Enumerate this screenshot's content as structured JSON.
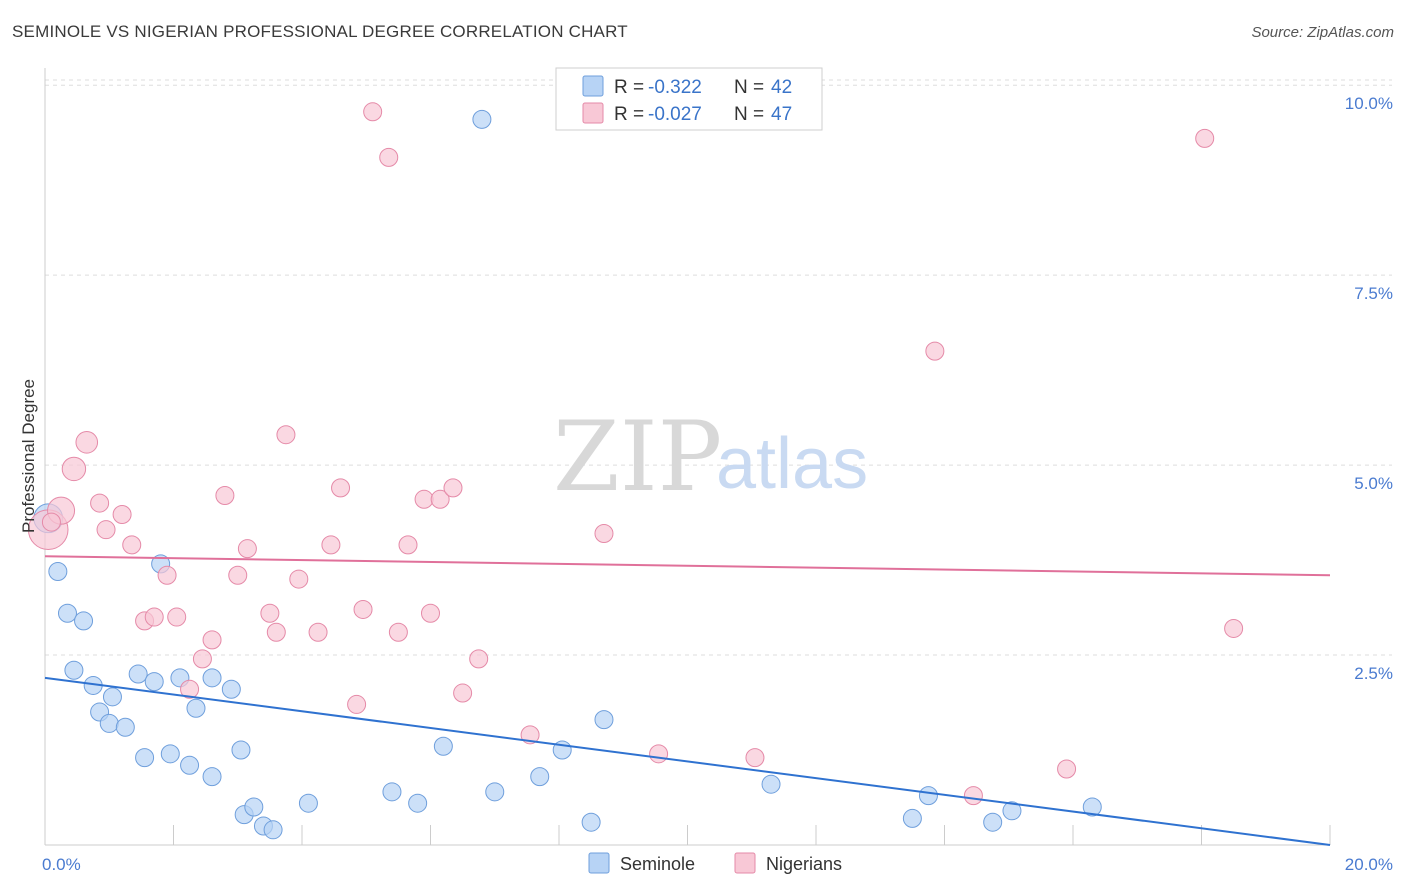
{
  "title": "SEMINOLE VS NIGERIAN PROFESSIONAL DEGREE CORRELATION CHART",
  "source": "Source: ZipAtlas.com",
  "colors": {
    "seminole_fill": "#b7d3f5",
    "seminole_stroke": "#6f9fdc",
    "seminole_line": "#2f72d0",
    "nigerian_fill": "#f8c8d6",
    "nigerian_stroke": "#e58aa8",
    "nigerian_line": "#e0709a",
    "axis_text": "#4a7bd0",
    "grid": "#dddddd"
  },
  "legend": {
    "rows": [
      {
        "r_label": "R =",
        "r_value": "-0.322",
        "n_label": "N =",
        "n_value": "42"
      },
      {
        "r_label": "R =",
        "r_value": "-0.027",
        "n_label": "N =",
        "n_value": "47"
      }
    ]
  },
  "watermark": {
    "zip": "ZIP",
    "atlas": "atlas"
  },
  "chart_data": {
    "type": "scatter",
    "title": "SEMINOLE VS NIGERIAN PROFESSIONAL DEGREE CORRELATION CHART",
    "xlabel": "",
    "ylabel": "Professional Degree",
    "xlim": [
      0,
      20
    ],
    "ylim": [
      0,
      10.2
    ],
    "x_tick_labels": [
      {
        "value": 0,
        "label": "0.0%"
      },
      {
        "value": 20,
        "label": "20.0%"
      }
    ],
    "x_minor_ticks": [
      2,
      4,
      6,
      8,
      10,
      12,
      14,
      16,
      18,
      20
    ],
    "y_ticks": [
      {
        "value": 2.5,
        "label": "2.5%"
      },
      {
        "value": 5.0,
        "label": "5.0%"
      },
      {
        "value": 7.5,
        "label": "7.5%"
      },
      {
        "value": 10.0,
        "label": "10.0%"
      }
    ],
    "grid": true,
    "legend_position": "top-center",
    "series": [
      {
        "name": "Seminole",
        "color": "#6f9fdc",
        "r": "-0.322",
        "n": "42",
        "trend": {
          "x0": 0,
          "y0": 2.2,
          "x1": 20,
          "y1": 0.0
        },
        "points": [
          [
            0.05,
            4.3,
            1.6
          ],
          [
            0.2,
            3.6,
            1
          ],
          [
            0.35,
            3.05,
            1
          ],
          [
            0.45,
            2.3,
            1
          ],
          [
            0.6,
            2.95,
            1
          ],
          [
            0.75,
            2.1,
            1
          ],
          [
            0.85,
            1.75,
            1
          ],
          [
            1.05,
            1.95,
            1
          ],
          [
            1.0,
            1.6,
            1
          ],
          [
            1.25,
            1.55,
            1
          ],
          [
            1.45,
            2.25,
            1
          ],
          [
            1.55,
            1.15,
            1
          ],
          [
            1.7,
            2.15,
            1
          ],
          [
            1.8,
            3.7,
            1
          ],
          [
            1.95,
            1.2,
            1
          ],
          [
            2.1,
            2.2,
            1
          ],
          [
            2.25,
            1.05,
            1
          ],
          [
            2.35,
            1.8,
            1
          ],
          [
            2.6,
            2.2,
            1
          ],
          [
            2.6,
            0.9,
            1
          ],
          [
            2.9,
            2.05,
            1
          ],
          [
            3.05,
            1.25,
            1
          ],
          [
            3.1,
            0.4,
            1
          ],
          [
            3.25,
            0.5,
            1
          ],
          [
            3.4,
            0.25,
            1
          ],
          [
            3.55,
            0.2,
            1
          ],
          [
            4.1,
            0.55,
            1
          ],
          [
            5.4,
            0.7,
            1
          ],
          [
            5.8,
            0.55,
            1
          ],
          [
            6.2,
            1.3,
            1
          ],
          [
            6.8,
            9.55,
            1
          ],
          [
            7.0,
            0.7,
            1
          ],
          [
            7.7,
            0.9,
            1
          ],
          [
            8.05,
            1.25,
            1
          ],
          [
            8.5,
            0.3,
            1
          ],
          [
            8.7,
            1.65,
            1
          ],
          [
            11.3,
            0.8,
            1
          ],
          [
            13.5,
            0.35,
            1
          ],
          [
            13.75,
            0.65,
            1
          ],
          [
            14.75,
            0.3,
            1
          ],
          [
            15.05,
            0.45,
            1
          ],
          [
            16.3,
            0.5,
            1
          ]
        ]
      },
      {
        "name": "Nigerians",
        "color": "#e58aa8",
        "r": "-0.027",
        "n": "47",
        "trend": {
          "x0": 0,
          "y0": 3.8,
          "x1": 20,
          "y1": 3.55
        },
        "points": [
          [
            0.05,
            4.15,
            2.2
          ],
          [
            0.25,
            4.4,
            1.5
          ],
          [
            0.45,
            4.95,
            1.3
          ],
          [
            0.65,
            5.3,
            1.2
          ],
          [
            0.85,
            4.5,
            1
          ],
          [
            0.95,
            4.15,
            1
          ],
          [
            1.2,
            4.35,
            1
          ],
          [
            1.35,
            3.95,
            1
          ],
          [
            1.55,
            2.95,
            1
          ],
          [
            1.7,
            3.0,
            1
          ],
          [
            1.9,
            3.55,
            1
          ],
          [
            2.05,
            3.0,
            1
          ],
          [
            2.25,
            2.05,
            1
          ],
          [
            2.45,
            2.45,
            1
          ],
          [
            2.6,
            2.7,
            1
          ],
          [
            2.8,
            4.6,
            1
          ],
          [
            3.0,
            3.55,
            1
          ],
          [
            3.15,
            3.9,
            1
          ],
          [
            3.5,
            3.05,
            1
          ],
          [
            3.6,
            2.8,
            1
          ],
          [
            3.75,
            5.4,
            1
          ],
          [
            3.95,
            3.5,
            1
          ],
          [
            4.25,
            2.8,
            1
          ],
          [
            4.45,
            3.95,
            1
          ],
          [
            4.6,
            4.7,
            1
          ],
          [
            4.85,
            1.85,
            1
          ],
          [
            4.95,
            3.1,
            1
          ],
          [
            5.1,
            9.65,
            1
          ],
          [
            5.35,
            9.05,
            1
          ],
          [
            5.5,
            2.8,
            1
          ],
          [
            5.65,
            3.95,
            1
          ],
          [
            5.9,
            4.55,
            1
          ],
          [
            6.0,
            3.05,
            1
          ],
          [
            6.15,
            4.55,
            1
          ],
          [
            6.35,
            4.7,
            1
          ],
          [
            6.5,
            2.0,
            1
          ],
          [
            6.75,
            2.45,
            1
          ],
          [
            7.55,
            1.45,
            1
          ],
          [
            8.7,
            4.1,
            1
          ],
          [
            9.55,
            1.2,
            1
          ],
          [
            11.05,
            1.15,
            1
          ],
          [
            13.85,
            6.5,
            1
          ],
          [
            14.45,
            0.65,
            1
          ],
          [
            15.9,
            1.0,
            1
          ],
          [
            18.05,
            9.3,
            1
          ],
          [
            18.5,
            2.85,
            1
          ],
          [
            0.1,
            4.25,
            1
          ]
        ]
      }
    ]
  }
}
